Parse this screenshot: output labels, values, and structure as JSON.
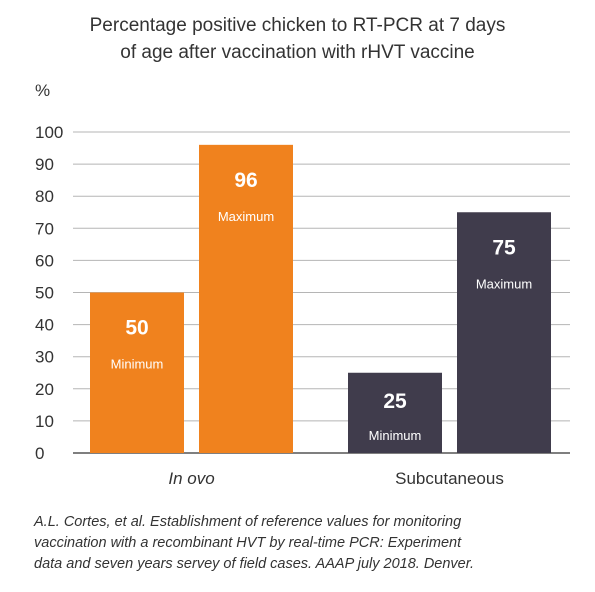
{
  "title": {
    "line1": "Percentage positive chicken to RT-PCR at 7 days",
    "line2": "of age after vaccination with rHVT vaccine"
  },
  "colors": {
    "orange": "#f0821e",
    "dark": "#403c4c",
    "grid": "#b5b5b5",
    "text": "#333333"
  },
  "chart_data": {
    "type": "bar",
    "ylabel": "%",
    "ylim": [
      0,
      100
    ],
    "yticks": [
      0,
      10,
      20,
      30,
      40,
      50,
      60,
      70,
      80,
      90,
      100
    ],
    "grid": true,
    "groups": [
      {
        "name": "In ovo",
        "italic": true,
        "color": "#f0821e",
        "bars": [
          {
            "value": 50,
            "label": "Minimum"
          },
          {
            "value": 96,
            "label": "Maximum"
          }
        ]
      },
      {
        "name": "Subcutaneous",
        "italic": false,
        "color": "#403c4c",
        "bars": [
          {
            "value": 25,
            "label": "Minimum"
          },
          {
            "value": 75,
            "label": "Maximum"
          }
        ]
      }
    ]
  },
  "caption": {
    "line1": "A.L. Cortes, et al. Establishment of reference values for monitoring",
    "line2": "vaccination with a recombinant HVT by real-time PCR: Experiment",
    "line3": "data and seven years servey of field cases. AAAP july 2018. Denver."
  }
}
